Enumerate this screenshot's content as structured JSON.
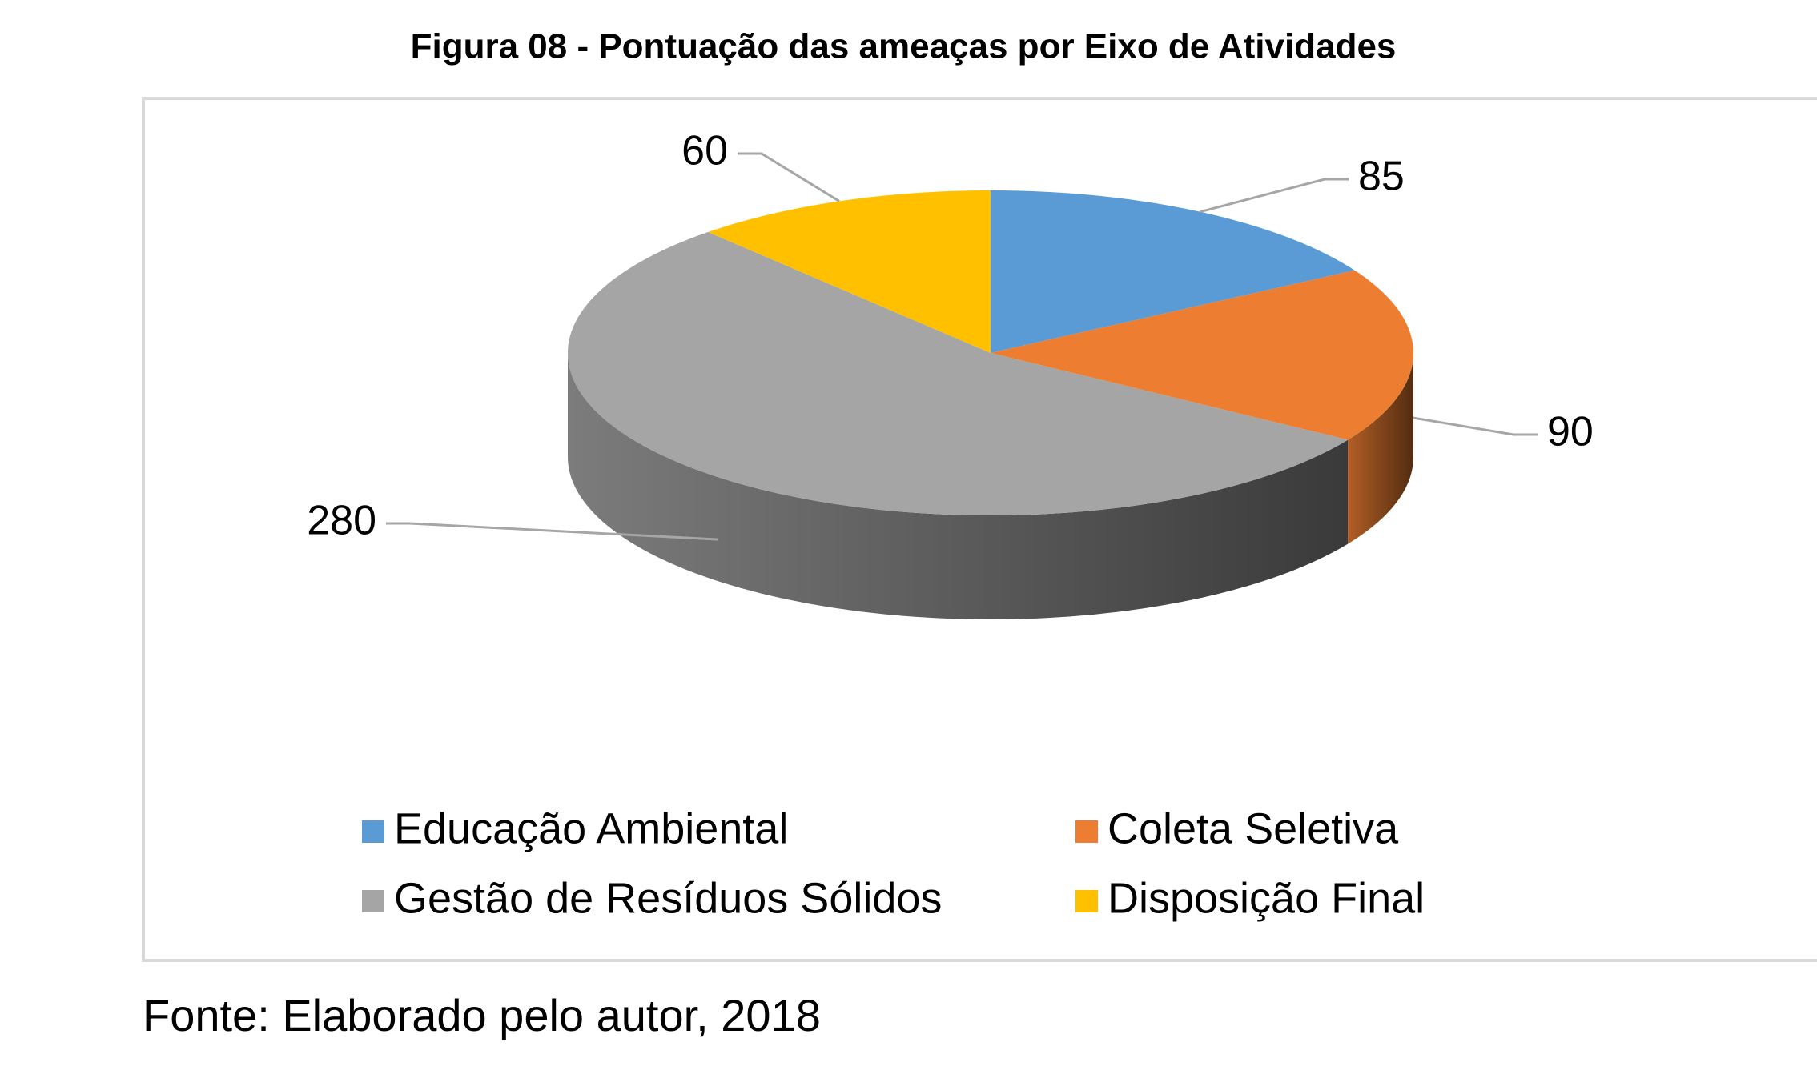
{
  "chart_data": {
    "type": "pie",
    "title": "Figura 08 - Pontuação das ameaças por Eixo de Atividades",
    "categories": [
      "Educação Ambiental",
      "Coleta Seletiva",
      "Gestão de Resíduos Sólidos",
      "Disposição Final"
    ],
    "values": [
      85,
      90,
      280,
      60
    ],
    "colors": [
      "#5b9bd5",
      "#ed7d31",
      "#a5a5a5",
      "#ffc000"
    ],
    "source": "Fonte: Elaborado pelo autor, 2018"
  }
}
